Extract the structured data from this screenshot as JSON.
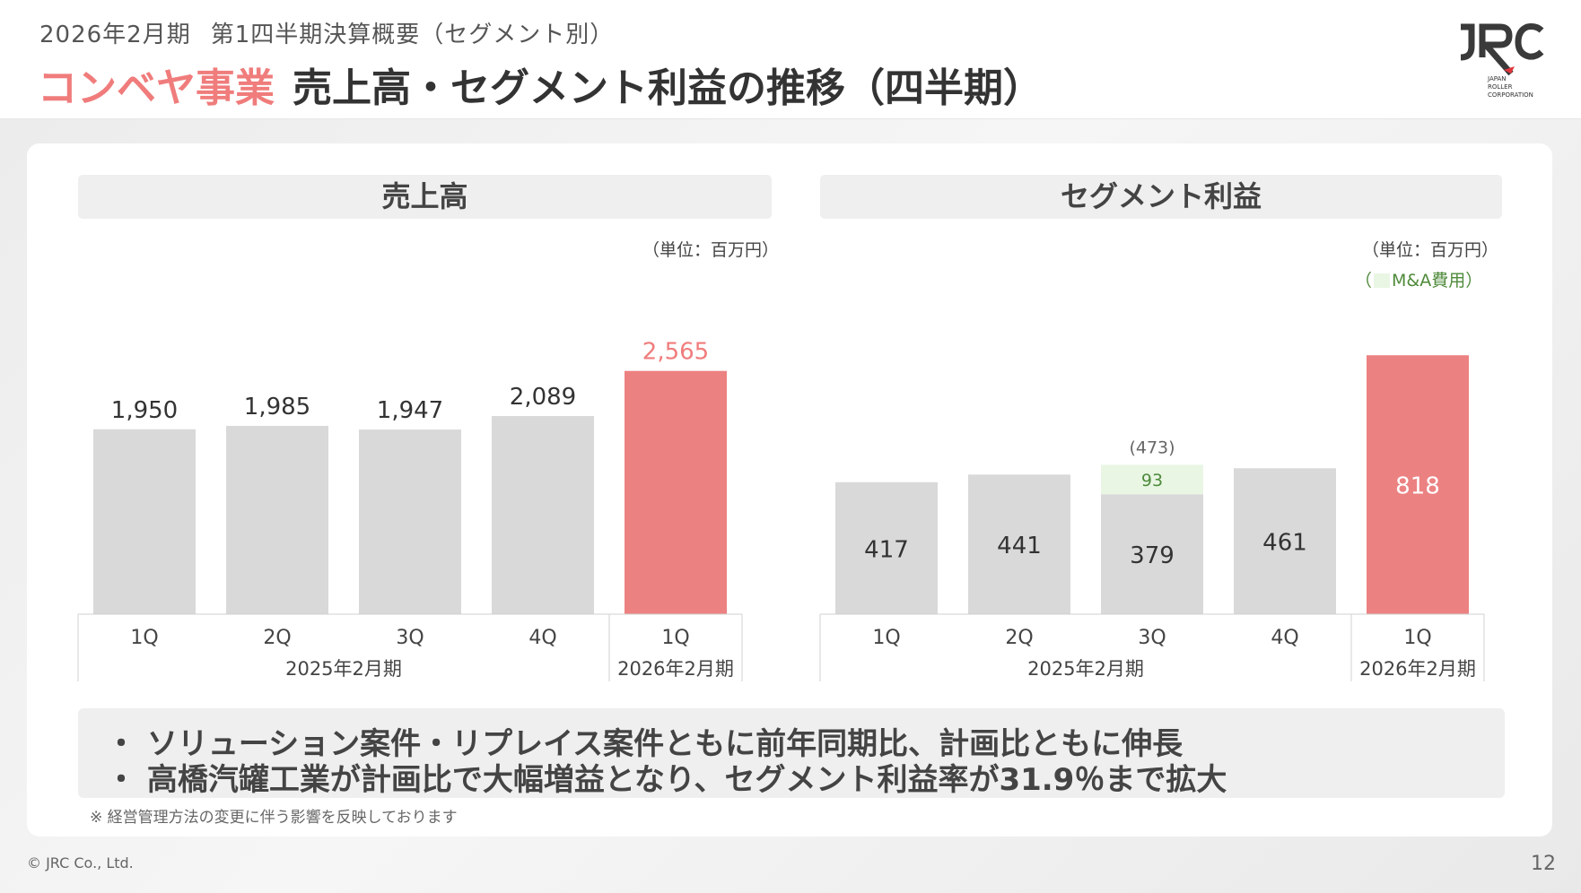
{
  "header": {
    "subtitle_period": "2026年2月期",
    "subtitle_text": "第1四半期決算概要（セグメント別）",
    "title_accent": "コンベヤ事業",
    "title_main": "売上高・セグメント利益の推移（四半期）"
  },
  "logo": {
    "mark": "JRC",
    "line1": "JAPAN",
    "line2": "ROLLER",
    "line3": "CORPORATION"
  },
  "chart_data": [
    {
      "type": "bar",
      "title": "売上高",
      "unit": "（単位：百万円）",
      "categories": [
        "1Q",
        "2Q",
        "3Q",
        "4Q",
        "1Q"
      ],
      "values": [
        1950,
        1985,
        1947,
        2089,
        2565
      ],
      "value_labels": [
        "1,950",
        "1,985",
        "1,947",
        "2,089",
        "2,565"
      ],
      "period_groups": [
        {
          "label": "2025年2月期",
          "start": 0,
          "end": 3
        },
        {
          "label": "2026年2月期",
          "start": 4,
          "end": 4
        }
      ],
      "colors": {
        "bar": "#d9d9d9",
        "highlight": "#ec8181",
        "highlight_label": "#f07c7c"
      },
      "highlight_index": 4,
      "ylim": [
        0,
        2600
      ]
    },
    {
      "type": "bar",
      "title": "セグメント利益",
      "unit": "（単位：百万円）",
      "legend": "（　：M&A費用）",
      "categories": [
        "1Q",
        "2Q",
        "3Q",
        "4Q",
        "1Q"
      ],
      "values": [
        417,
        441,
        379,
        461,
        818
      ],
      "value_labels": [
        "417",
        "441",
        "379",
        "461",
        "818"
      ],
      "stacked_extra": {
        "index": 2,
        "value": 93,
        "label": "93",
        "total_label": "(473)",
        "name": "M&A費用"
      },
      "period_groups": [
        {
          "label": "2025年2月期",
          "start": 0,
          "end": 3
        },
        {
          "label": "2026年2月期",
          "start": 4,
          "end": 4
        }
      ],
      "colors": {
        "bar": "#d9d9d9",
        "highlight": "#ec8181",
        "extra": "#e9f6e4",
        "extra_label": "#4e8a3a"
      },
      "highlight_index": 4,
      "ylim": [
        0,
        830
      ]
    }
  ],
  "comments": [
    "・ ソリューション案件・リプレイス案件ともに前年同期比、計画比ともに伸長",
    "・ 高橋汽罐工業が計画比で大幅増益となり、セグメント利益率が31.9％まで拡大"
  ],
  "note": "※ 経営管理方法の変更に伴う影響を反映しております",
  "footer": {
    "copyright": "© JRC Co., Ltd.",
    "page": "12"
  }
}
